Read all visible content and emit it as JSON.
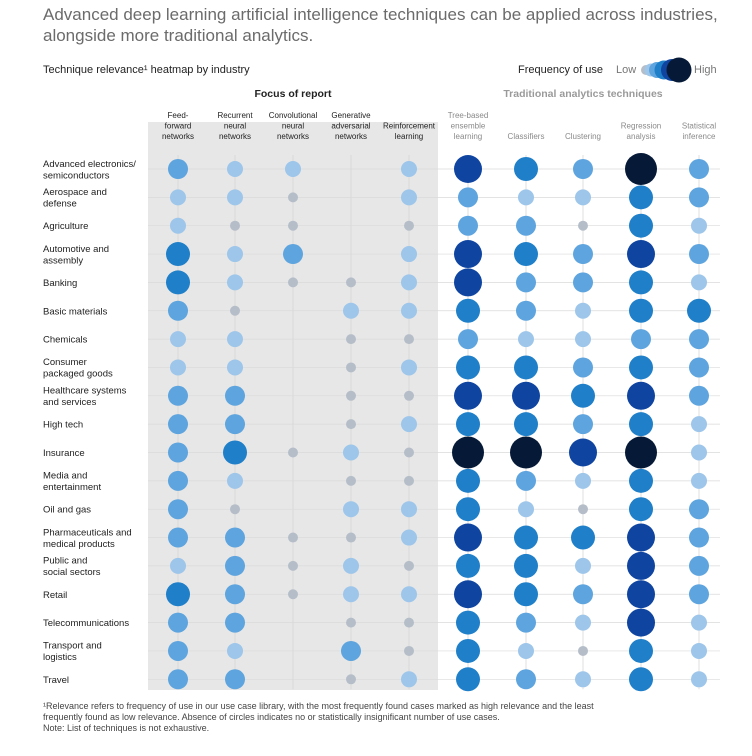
{
  "headline": [
    "Advanced deep learning artificial intelligence techniques can be applied across industries,",
    "alongside more traditional analytics."
  ],
  "subtitle": "Technique relevance¹ heatmap by industry",
  "legend": {
    "title": "Frequency of use",
    "low": "Low",
    "high": "High"
  },
  "footnote": [
    "¹Relevance refers to frequency of use in our use case library, with the most frequently found cases marked as high relevance and the least",
    " frequently found as low relevance. Absence of circles indicates no or statistically insignificant number of use cases.",
    " Note: List of techniques is not exhaustive."
  ],
  "colors": {
    "l1": "#b5bec8",
    "l2": "#9dc6ea",
    "l3": "#5ea4de",
    "l4": "#1f7fc8",
    "l5": "#0f44a0",
    "l6": "#061a38",
    "panel": "#e7e7e7"
  },
  "chart_data": {
    "type": "heatmap",
    "scale": "1 = low frequency of use, 6 = high frequency of use, 0 = no circle",
    "groups": [
      {
        "label": "Focus of report",
        "columns": [
          0,
          1,
          2,
          3,
          4
        ]
      },
      {
        "label": "Traditional analytics techniques",
        "columns": [
          5,
          6,
          7,
          8,
          9
        ]
      }
    ],
    "columns": [
      [
        "Feed-",
        "forward",
        "networks"
      ],
      [
        "Recurrent",
        "neural",
        "networks"
      ],
      [
        "Convolutional",
        "neural",
        "networks"
      ],
      [
        "Generative",
        "adversarial",
        "networks"
      ],
      [
        "Reinforcement",
        "learning"
      ],
      [
        "Tree-based",
        "ensemble",
        "learning"
      ],
      [
        "Classifiers"
      ],
      [
        "Clustering"
      ],
      [
        "Regression",
        "analysis"
      ],
      [
        "Statistical",
        "inference"
      ]
    ],
    "rows": [
      {
        "label": [
          "Advanced electronics/",
          "semiconductors"
        ],
        "values": [
          3,
          2,
          2,
          0,
          2,
          5,
          4,
          3,
          6,
          3
        ]
      },
      {
        "label": [
          "Aerospace and",
          "defense"
        ],
        "values": [
          2,
          2,
          1,
          0,
          2,
          3,
          2,
          2,
          4,
          3
        ]
      },
      {
        "label": [
          "Agriculture"
        ],
        "values": [
          2,
          1,
          1,
          0,
          1,
          3,
          3,
          1,
          4,
          2
        ]
      },
      {
        "label": [
          "Automotive and",
          "assembly"
        ],
        "values": [
          4,
          2,
          3,
          0,
          2,
          5,
          4,
          3,
          5,
          3
        ]
      },
      {
        "label": [
          "Banking"
        ],
        "values": [
          4,
          2,
          1,
          1,
          2,
          5,
          3,
          3,
          4,
          2
        ]
      },
      {
        "label": [
          "Basic materials"
        ],
        "values": [
          3,
          1,
          0,
          2,
          2,
          4,
          3,
          2,
          4,
          4
        ]
      },
      {
        "label": [
          "Chemicals"
        ],
        "values": [
          2,
          2,
          0,
          1,
          1,
          3,
          2,
          2,
          3,
          3
        ]
      },
      {
        "label": [
          "Consumer",
          "packaged goods"
        ],
        "values": [
          2,
          2,
          0,
          1,
          2,
          4,
          4,
          3,
          4,
          3
        ]
      },
      {
        "label": [
          "Healthcare systems",
          "and services"
        ],
        "values": [
          3,
          3,
          0,
          1,
          1,
          5,
          5,
          4,
          5,
          3
        ]
      },
      {
        "label": [
          "High tech"
        ],
        "values": [
          3,
          3,
          0,
          1,
          2,
          4,
          4,
          3,
          4,
          2
        ]
      },
      {
        "label": [
          "Insurance"
        ],
        "values": [
          3,
          4,
          1,
          2,
          1,
          6,
          6,
          5,
          6,
          2
        ]
      },
      {
        "label": [
          "Media and",
          "entertainment"
        ],
        "values": [
          3,
          2,
          0,
          1,
          1,
          4,
          3,
          2,
          4,
          2
        ]
      },
      {
        "label": [
          "Oil and gas"
        ],
        "values": [
          3,
          1,
          0,
          2,
          2,
          4,
          2,
          1,
          4,
          3
        ]
      },
      {
        "label": [
          "Pharmaceuticals and",
          "medical products"
        ],
        "values": [
          3,
          3,
          1,
          1,
          2,
          5,
          4,
          4,
          5,
          3
        ]
      },
      {
        "label": [
          "Public and",
          "social sectors"
        ],
        "values": [
          2,
          3,
          1,
          2,
          1,
          4,
          4,
          2,
          5,
          3
        ]
      },
      {
        "label": [
          "Retail"
        ],
        "values": [
          4,
          3,
          1,
          2,
          2,
          5,
          4,
          3,
          5,
          3
        ]
      },
      {
        "label": [
          "Telecommunications"
        ],
        "values": [
          3,
          3,
          0,
          1,
          1,
          4,
          3,
          2,
          5,
          2
        ]
      },
      {
        "label": [
          "Transport and",
          "logistics"
        ],
        "values": [
          3,
          2,
          0,
          3,
          1,
          4,
          2,
          1,
          4,
          2
        ]
      },
      {
        "label": [
          "Travel"
        ],
        "values": [
          3,
          3,
          0,
          1,
          2,
          4,
          3,
          2,
          4,
          2
        ]
      }
    ]
  }
}
